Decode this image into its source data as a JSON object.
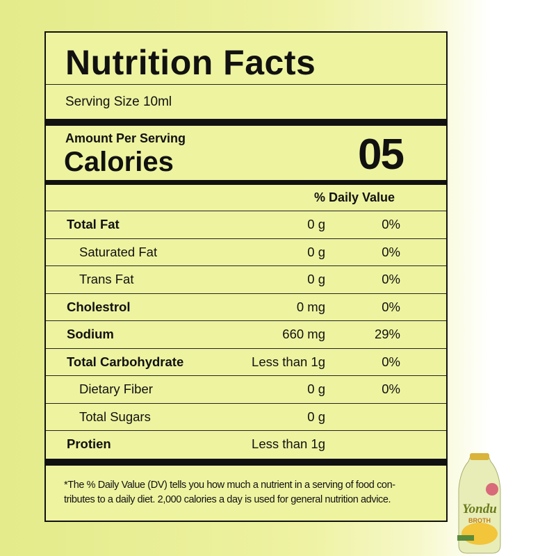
{
  "title": "Nutrition Facts",
  "serving_size": "Serving Size 10ml",
  "amount_per_serving": "Amount Per Serving",
  "calories_label": "Calories",
  "calories_value": "05",
  "daily_value_header": "% Daily Value",
  "rows": [
    {
      "name": "Total Fat",
      "amount": "0 g",
      "dv": "0%",
      "bold": true
    },
    {
      "name": "Saturated Fat",
      "amount": "0 g",
      "dv": "0%",
      "bold": false
    },
    {
      "name": "Trans Fat",
      "amount": "0 g",
      "dv": "0%",
      "bold": false
    },
    {
      "name": "Cholestrol",
      "amount": "0 mg",
      "dv": "0%",
      "bold": true
    },
    {
      "name": "Sodium",
      "amount": "660 mg",
      "dv": "29%",
      "bold": true
    },
    {
      "name": "Total Carbohydrate",
      "amount": "Less than 1g",
      "dv": "0%",
      "bold": true
    },
    {
      "name": "Dietary Fiber",
      "amount": "0 g",
      "dv": "0%",
      "bold": false
    },
    {
      "name": "Total Sugars",
      "amount": "0 g",
      "bold": false
    },
    {
      "name": "Protien",
      "amount": "Less than 1g",
      "bold": true
    }
  ],
  "footnote": [
    "*The % Daily Value (DV) tells you how much a nutrient in a serving of food con-",
    "tributes to a daily diet. 2,000 calories a day is used for general nutrition advice."
  ],
  "product": {
    "brand": "Yondu",
    "type": "BROTH"
  }
}
